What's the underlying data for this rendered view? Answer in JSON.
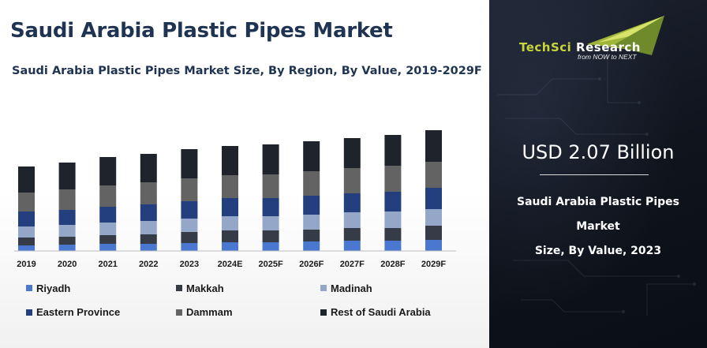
{
  "header": {
    "title": "Saudi Arabia Plastic Pipes Market",
    "subtitle": "Saudi Arabia Plastic Pipes Market Size, By Region, By Value, 2019-2029F"
  },
  "brand": {
    "name_part1": "TechSci ",
    "name_part2": "Research",
    "tagline": "from NOW to NEXT",
    "accent_color": "#c8d63a"
  },
  "highlight": {
    "value": "USD 2.07 Billion",
    "caption_line1": "Saudi Arabia Plastic Pipes Market",
    "caption_line2": "Size, By Value, 2023"
  },
  "chart_data": {
    "type": "bar",
    "stacked": true,
    "title": "",
    "xlabel": "",
    "ylabel": "",
    "y_axis_visible": false,
    "grid": false,
    "legend_position": "bottom",
    "categories": [
      "2019",
      "2020",
      "2021",
      "2022",
      "2023",
      "2024E",
      "2025F",
      "2026F",
      "2027F",
      "2028F",
      "2029F"
    ],
    "series": [
      {
        "name": "Riyadh",
        "color": "#4a78d0",
        "values": [
          7,
          8,
          9,
          9,
          10,
          11,
          11,
          12,
          13,
          13,
          14
        ]
      },
      {
        "name": "Makkah",
        "color": "#353c48",
        "values": [
          10,
          10,
          11,
          12,
          14,
          15,
          15,
          15,
          16,
          16,
          18
        ]
      },
      {
        "name": "Madinah",
        "color": "#94a7c8",
        "values": [
          14,
          15,
          16,
          17,
          17,
          18,
          18,
          19,
          20,
          21,
          21
        ]
      },
      {
        "name": "Eastern Province",
        "color": "#243f7d",
        "values": [
          19,
          19,
          20,
          21,
          22,
          23,
          23,
          24,
          24,
          25,
          27
        ]
      },
      {
        "name": "Dammam",
        "color": "#636363",
        "values": [
          24,
          26,
          27,
          28,
          29,
          29,
          30,
          31,
          32,
          33,
          33
        ]
      },
      {
        "name": "Rest of Saudi Arabia",
        "color": "#1e232c",
        "values": [
          33,
          34,
          36,
          36,
          37,
          37,
          38,
          38,
          38,
          39,
          40
        ]
      }
    ]
  }
}
